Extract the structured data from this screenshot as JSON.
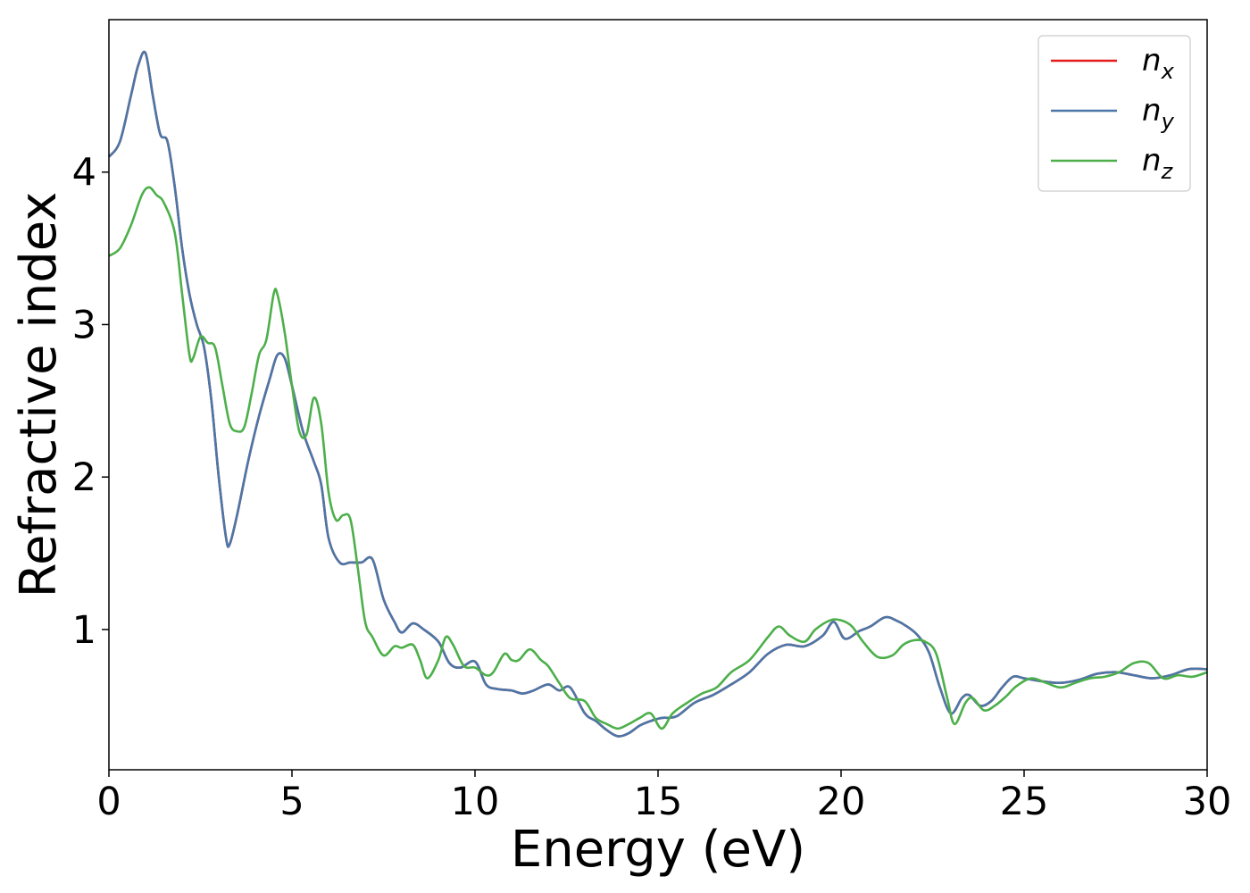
{
  "chart_data": {
    "type": "line",
    "title": "",
    "xlabel": "Energy (eV)",
    "ylabel": "Refractive index",
    "xlim": [
      0,
      30
    ],
    "ylim": [
      0.08,
      5.0
    ],
    "xticks": [
      0,
      5,
      10,
      15,
      20,
      25,
      30
    ],
    "yticks": [
      1,
      2,
      3,
      4
    ],
    "grid": false,
    "legend": "top-right",
    "series": [
      {
        "name": "n_x",
        "label_base": "n",
        "label_sub": "x",
        "color": "#e41a1c",
        "x": [
          0,
          0.3,
          0.6,
          0.8,
          1.0,
          1.2,
          1.4,
          1.6,
          1.8,
          2.0,
          2.2,
          2.4,
          2.6,
          2.8,
          3.0,
          3.2,
          3.3,
          3.5,
          3.8,
          4.1,
          4.4,
          4.6,
          4.8,
          5.0,
          5.3,
          5.6,
          5.8,
          6.0,
          6.3,
          6.6,
          6.9,
          7.2,
          7.5,
          7.8,
          8.0,
          8.3,
          8.6,
          9.0,
          9.3,
          9.6,
          10.0,
          10.3,
          10.6,
          11.0,
          11.3,
          11.6,
          12.0,
          12.3,
          12.6,
          13.0,
          13.3,
          13.6,
          13.9,
          14.2,
          14.5,
          14.8,
          15.1,
          15.5,
          16.0,
          16.5,
          17.0,
          17.5,
          18.0,
          18.5,
          19.0,
          19.5,
          19.8,
          20.1,
          20.5,
          20.8,
          21.2,
          21.5,
          21.8,
          22.1,
          22.4,
          22.7,
          23.0,
          23.3,
          23.5,
          23.8,
          24.1,
          24.4,
          24.7,
          25.0,
          25.5,
          26.0,
          26.5,
          27.0,
          27.5,
          28.0,
          28.5,
          29.0,
          29.5,
          30.0
        ],
        "y": [
          4.1,
          4.2,
          4.5,
          4.7,
          4.78,
          4.5,
          4.25,
          4.2,
          3.9,
          3.5,
          3.2,
          3.0,
          2.85,
          2.5,
          2.0,
          1.6,
          1.56,
          1.75,
          2.1,
          2.4,
          2.65,
          2.8,
          2.78,
          2.6,
          2.3,
          2.1,
          1.95,
          1.6,
          1.44,
          1.44,
          1.44,
          1.46,
          1.2,
          1.05,
          0.98,
          1.04,
          1.0,
          0.92,
          0.78,
          0.75,
          0.79,
          0.64,
          0.61,
          0.6,
          0.58,
          0.6,
          0.64,
          0.6,
          0.62,
          0.45,
          0.4,
          0.34,
          0.3,
          0.32,
          0.37,
          0.4,
          0.42,
          0.43,
          0.52,
          0.57,
          0.64,
          0.72,
          0.84,
          0.9,
          0.89,
          0.96,
          1.05,
          0.94,
          0.99,
          1.02,
          1.08,
          1.06,
          1.02,
          0.96,
          0.85,
          0.62,
          0.45,
          0.55,
          0.57,
          0.5,
          0.53,
          0.62,
          0.69,
          0.68,
          0.66,
          0.65,
          0.67,
          0.71,
          0.72,
          0.7,
          0.68,
          0.7,
          0.74,
          0.74
        ]
      },
      {
        "name": "n_y",
        "label_base": "n",
        "label_sub": "y",
        "color": "#4a77a8",
        "x": [
          0,
          0.3,
          0.6,
          0.8,
          1.0,
          1.2,
          1.4,
          1.6,
          1.8,
          2.0,
          2.2,
          2.4,
          2.6,
          2.8,
          3.0,
          3.2,
          3.3,
          3.5,
          3.8,
          4.1,
          4.4,
          4.6,
          4.8,
          5.0,
          5.3,
          5.6,
          5.8,
          6.0,
          6.3,
          6.6,
          6.9,
          7.2,
          7.5,
          7.8,
          8.0,
          8.3,
          8.6,
          9.0,
          9.3,
          9.6,
          10.0,
          10.3,
          10.6,
          11.0,
          11.3,
          11.6,
          12.0,
          12.3,
          12.6,
          13.0,
          13.3,
          13.6,
          13.9,
          14.2,
          14.5,
          14.8,
          15.1,
          15.5,
          16.0,
          16.5,
          17.0,
          17.5,
          18.0,
          18.5,
          19.0,
          19.5,
          19.8,
          20.1,
          20.5,
          20.8,
          21.2,
          21.5,
          21.8,
          22.1,
          22.4,
          22.7,
          23.0,
          23.3,
          23.5,
          23.8,
          24.1,
          24.4,
          24.7,
          25.0,
          25.5,
          26.0,
          26.5,
          27.0,
          27.5,
          28.0,
          28.5,
          29.0,
          29.5,
          30.0
        ],
        "y": [
          4.1,
          4.2,
          4.5,
          4.7,
          4.78,
          4.5,
          4.25,
          4.2,
          3.9,
          3.5,
          3.2,
          3.0,
          2.85,
          2.5,
          2.0,
          1.6,
          1.56,
          1.75,
          2.1,
          2.4,
          2.65,
          2.8,
          2.78,
          2.6,
          2.3,
          2.1,
          1.95,
          1.6,
          1.44,
          1.44,
          1.44,
          1.46,
          1.2,
          1.05,
          0.98,
          1.04,
          1.0,
          0.92,
          0.78,
          0.75,
          0.79,
          0.64,
          0.61,
          0.6,
          0.58,
          0.6,
          0.64,
          0.6,
          0.62,
          0.45,
          0.4,
          0.34,
          0.3,
          0.32,
          0.37,
          0.4,
          0.42,
          0.43,
          0.52,
          0.57,
          0.64,
          0.72,
          0.84,
          0.9,
          0.89,
          0.96,
          1.05,
          0.94,
          0.99,
          1.02,
          1.08,
          1.06,
          1.02,
          0.96,
          0.85,
          0.62,
          0.45,
          0.55,
          0.57,
          0.5,
          0.53,
          0.62,
          0.69,
          0.68,
          0.66,
          0.65,
          0.67,
          0.71,
          0.72,
          0.7,
          0.68,
          0.7,
          0.74,
          0.74
        ]
      },
      {
        "name": "n_z",
        "label_base": "n",
        "label_sub": "z",
        "color": "#4daf4a",
        "x": [
          0,
          0.3,
          0.6,
          0.9,
          1.1,
          1.3,
          1.5,
          1.8,
          2.0,
          2.2,
          2.3,
          2.5,
          2.7,
          2.9,
          3.1,
          3.3,
          3.5,
          3.7,
          3.9,
          4.1,
          4.3,
          4.5,
          4.6,
          4.8,
          5.0,
          5.2,
          5.4,
          5.6,
          5.8,
          6.0,
          6.2,
          6.4,
          6.6,
          6.8,
          7.0,
          7.2,
          7.5,
          7.8,
          8.0,
          8.3,
          8.5,
          8.7,
          9.0,
          9.2,
          9.4,
          9.7,
          10.0,
          10.3,
          10.5,
          10.8,
          11.0,
          11.2,
          11.5,
          11.8,
          12.0,
          12.3,
          12.6,
          13.0,
          13.3,
          13.6,
          13.9,
          14.2,
          14.5,
          14.8,
          15.1,
          15.4,
          15.8,
          16.2,
          16.6,
          17.0,
          17.5,
          18.0,
          18.3,
          18.6,
          19.0,
          19.3,
          19.7,
          20.0,
          20.3,
          20.6,
          21.0,
          21.4,
          21.7,
          22.0,
          22.3,
          22.6,
          22.9,
          23.1,
          23.4,
          23.6,
          23.9,
          24.2,
          24.5,
          24.8,
          25.2,
          25.6,
          26.0,
          26.4,
          26.8,
          27.2,
          27.6,
          28.0,
          28.4,
          28.8,
          29.2,
          29.6,
          30.0
        ],
        "y": [
          3.45,
          3.5,
          3.65,
          3.85,
          3.9,
          3.85,
          3.8,
          3.6,
          3.2,
          2.8,
          2.78,
          2.92,
          2.88,
          2.85,
          2.6,
          2.35,
          2.3,
          2.33,
          2.55,
          2.8,
          2.9,
          3.2,
          3.2,
          2.95,
          2.6,
          2.3,
          2.28,
          2.52,
          2.35,
          1.9,
          1.72,
          1.75,
          1.72,
          1.4,
          1.05,
          0.95,
          0.83,
          0.89,
          0.88,
          0.9,
          0.8,
          0.68,
          0.8,
          0.95,
          0.9,
          0.76,
          0.75,
          0.7,
          0.72,
          0.84,
          0.8,
          0.8,
          0.87,
          0.8,
          0.76,
          0.65,
          0.55,
          0.53,
          0.42,
          0.38,
          0.35,
          0.38,
          0.42,
          0.45,
          0.35,
          0.45,
          0.52,
          0.58,
          0.62,
          0.72,
          0.8,
          0.95,
          1.02,
          0.96,
          0.92,
          1.0,
          1.06,
          1.06,
          1.02,
          0.92,
          0.82,
          0.83,
          0.9,
          0.93,
          0.92,
          0.84,
          0.55,
          0.38,
          0.52,
          0.55,
          0.47,
          0.5,
          0.56,
          0.63,
          0.68,
          0.65,
          0.62,
          0.65,
          0.68,
          0.69,
          0.72,
          0.78,
          0.78,
          0.68,
          0.7,
          0.69,
          0.72
        ]
      }
    ]
  }
}
